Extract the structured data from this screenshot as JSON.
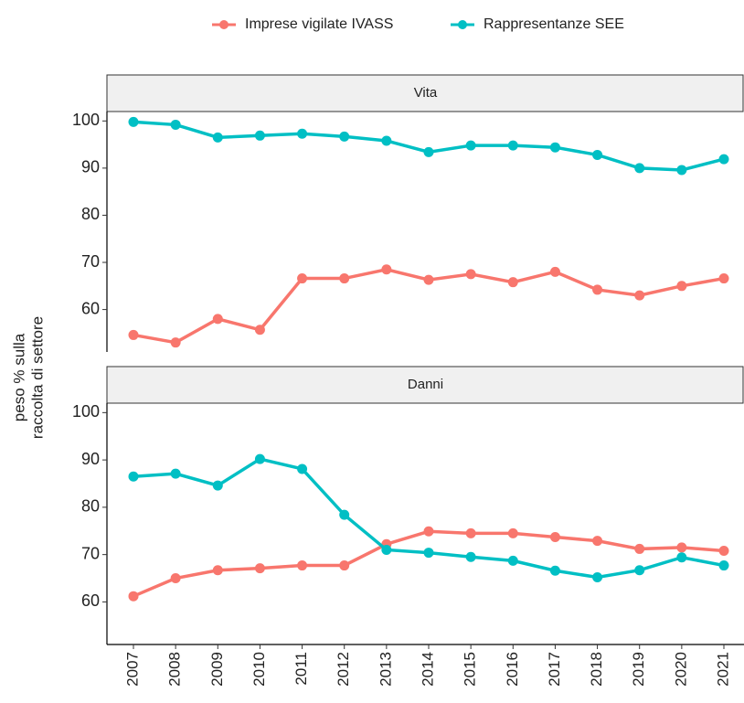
{
  "ylabel": [
    "peso % sulla",
    "raccolta di settore"
  ],
  "chart_data": [
    {
      "type": "line",
      "title": "Vita",
      "categories": [
        "2007",
        "2008",
        "2009",
        "2010",
        "2011",
        "2012",
        "2013",
        "2014",
        "2015",
        "2016",
        "2017",
        "2018",
        "2019",
        "2020",
        "2021"
      ],
      "series": [
        {
          "name": "Imprese vigilate IVASS",
          "color": "#f8766d",
          "values": [
            54.6,
            53.0,
            58.0,
            55.7,
            66.6,
            66.6,
            68.5,
            66.3,
            67.5,
            65.8,
            68.0,
            64.2,
            63.0,
            65.0,
            66.6
          ]
        },
        {
          "name": "Rappresentanze SEE",
          "color": "#00bfc4",
          "values": [
            99.8,
            99.2,
            96.5,
            96.9,
            97.3,
            96.7,
            95.8,
            93.4,
            94.8,
            94.8,
            94.4,
            92.8,
            90.0,
            89.6,
            91.9
          ]
        }
      ],
      "ylim": [
        51,
        102
      ],
      "yticks": [
        60,
        70,
        80,
        90,
        100
      ]
    },
    {
      "type": "line",
      "title": "Danni",
      "categories": [
        "2007",
        "2008",
        "2009",
        "2010",
        "2011",
        "2012",
        "2013",
        "2014",
        "2015",
        "2016",
        "2017",
        "2018",
        "2019",
        "2020",
        "2021"
      ],
      "series": [
        {
          "name": "Imprese vigilate IVASS",
          "color": "#f8766d",
          "values": [
            61.2,
            65.0,
            66.7,
            67.1,
            67.7,
            67.7,
            72.2,
            74.9,
            74.5,
            74.5,
            73.7,
            72.9,
            71.2,
            71.5,
            70.8
          ]
        },
        {
          "name": "Rappresentanze SEE",
          "color": "#00bfc4",
          "values": [
            86.5,
            87.1,
            84.6,
            90.2,
            88.1,
            78.4,
            71.0,
            70.4,
            69.5,
            68.7,
            66.6,
            65.2,
            66.7,
            69.4,
            67.7
          ]
        }
      ],
      "ylim": [
        51,
        102
      ],
      "yticks": [
        60,
        70,
        80,
        90,
        100
      ]
    }
  ]
}
